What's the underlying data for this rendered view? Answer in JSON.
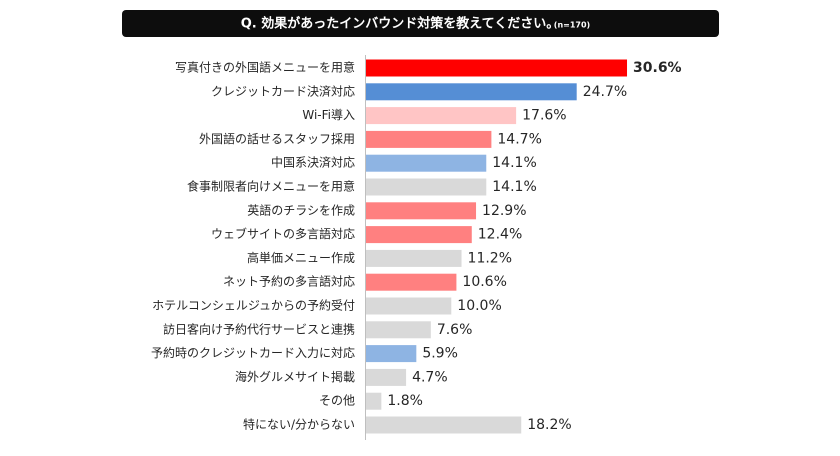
{
  "chart_data": {
    "type": "bar",
    "orientation": "horizontal",
    "title": "Q. 効果があったインバウンド対策を教えてください。",
    "subtitle": "(n=170)",
    "categories": [
      "写真付きの外国語メニューを用意",
      "クレジットカード決済対応",
      "Wi-Fi導入",
      "外国語の話せるスタッフ採用",
      "中国系決済対応",
      "食事制限者向けメニューを用意",
      "英語のチラシを作成",
      "ウェブサイトの多言語対応",
      "高単価メニュー作成",
      "ネット予約の多言語対応",
      "ホテルコンシェルジュからの予約受付",
      "訪日客向け予約代行サービスと連携",
      "予約時のクレジットカード入力に対応",
      "海外グルメサイト掲載",
      "その他",
      "特にない/分からない"
    ],
    "values": [
      30.6,
      24.7,
      17.6,
      14.7,
      14.1,
      14.1,
      12.9,
      12.4,
      11.2,
      10.6,
      10.0,
      7.6,
      5.9,
      4.7,
      1.8,
      18.2
    ],
    "value_labels": [
      "30.6%",
      "24.7%",
      "17.6%",
      "14.7%",
      "14.1%",
      "14.1%",
      "12.9%",
      "12.4%",
      "11.2%",
      "10.6%",
      "10.0%",
      "7.6%",
      "5.9%",
      "4.7%",
      "1.8%",
      "18.2%"
    ],
    "colors": [
      "#ff0000",
      "#558ed5",
      "#ffc5c5",
      "#ff8080",
      "#8eb4e3",
      "#d9d9d9",
      "#ff8080",
      "#ff8080",
      "#d9d9d9",
      "#ff8080",
      "#d9d9d9",
      "#d9d9d9",
      "#8eb4e3",
      "#d9d9d9",
      "#d9d9d9",
      "#d9d9d9"
    ]
  }
}
